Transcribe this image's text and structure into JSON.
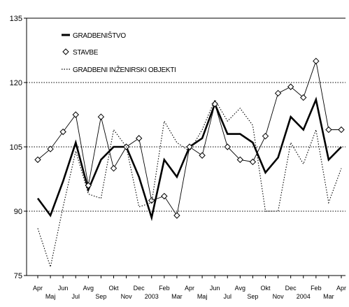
{
  "chart_data": {
    "type": "line",
    "title": "",
    "xlabel": "",
    "ylabel": "",
    "ylim": [
      75,
      135
    ],
    "yticks": [
      "75",
      "90",
      "105",
      "120",
      "135"
    ],
    "grid": "dotted horizontal lines at 90, 105, 120",
    "legend_position": "top-left",
    "categories": [
      {
        "top": "Apr",
        "bottom": ""
      },
      {
        "top": "",
        "bottom": "Maj"
      },
      {
        "top": "Jun",
        "bottom": ""
      },
      {
        "top": "",
        "bottom": "Jul"
      },
      {
        "top": "Avg",
        "bottom": ""
      },
      {
        "top": "",
        "bottom": "Sep"
      },
      {
        "top": "Okt",
        "bottom": ""
      },
      {
        "top": "",
        "bottom": "Nov"
      },
      {
        "top": "Dec",
        "bottom": ""
      },
      {
        "top": "",
        "bottom": "2003"
      },
      {
        "top": "Feb",
        "bottom": ""
      },
      {
        "top": "",
        "bottom": "Mar"
      },
      {
        "top": "Apr",
        "bottom": ""
      },
      {
        "top": "",
        "bottom": "Maj"
      },
      {
        "top": "Jun",
        "bottom": ""
      },
      {
        "top": "",
        "bottom": "Jul"
      },
      {
        "top": "Avg",
        "bottom": ""
      },
      {
        "top": "",
        "bottom": "Sep"
      },
      {
        "top": "Okt",
        "bottom": ""
      },
      {
        "top": "",
        "bottom": "Nov"
      },
      {
        "top": "Dec",
        "bottom": ""
      },
      {
        "top": "",
        "bottom": "2004"
      },
      {
        "top": "Feb",
        "bottom": ""
      },
      {
        "top": "",
        "bottom": "Mar"
      },
      {
        "top": "Apr",
        "bottom": ""
      }
    ],
    "series": [
      {
        "name": "GRADBENIŠTVO",
        "style": "thick-solid",
        "color": "#000000",
        "values": [
          93,
          89,
          97,
          106,
          95,
          102,
          105,
          105,
          98,
          88.5,
          102,
          98,
          105,
          107,
          115,
          108,
          108,
          106,
          99,
          102.5,
          112,
          109,
          116,
          102,
          105
        ]
      },
      {
        "name": "STAVBE",
        "style": "thin-solid-diamond",
        "color": "#000000",
        "values": [
          102,
          104.5,
          108.5,
          112.5,
          96,
          112,
          100,
          105,
          107,
          92.5,
          93.5,
          89,
          105,
          103,
          115,
          105,
          102,
          101.5,
          107.5,
          117.5,
          119,
          116.5,
          125,
          109,
          109
        ]
      },
      {
        "name": "GRADBENI INŽENIRSKI OBJEKTI",
        "style": "dotted",
        "color": "#000000",
        "values": [
          86,
          77,
          91,
          104,
          94,
          93,
          109,
          105,
          91,
          92,
          111,
          106,
          104,
          109,
          116,
          111,
          114,
          110,
          90,
          90,
          106,
          101,
          109,
          92,
          100
        ]
      }
    ]
  }
}
